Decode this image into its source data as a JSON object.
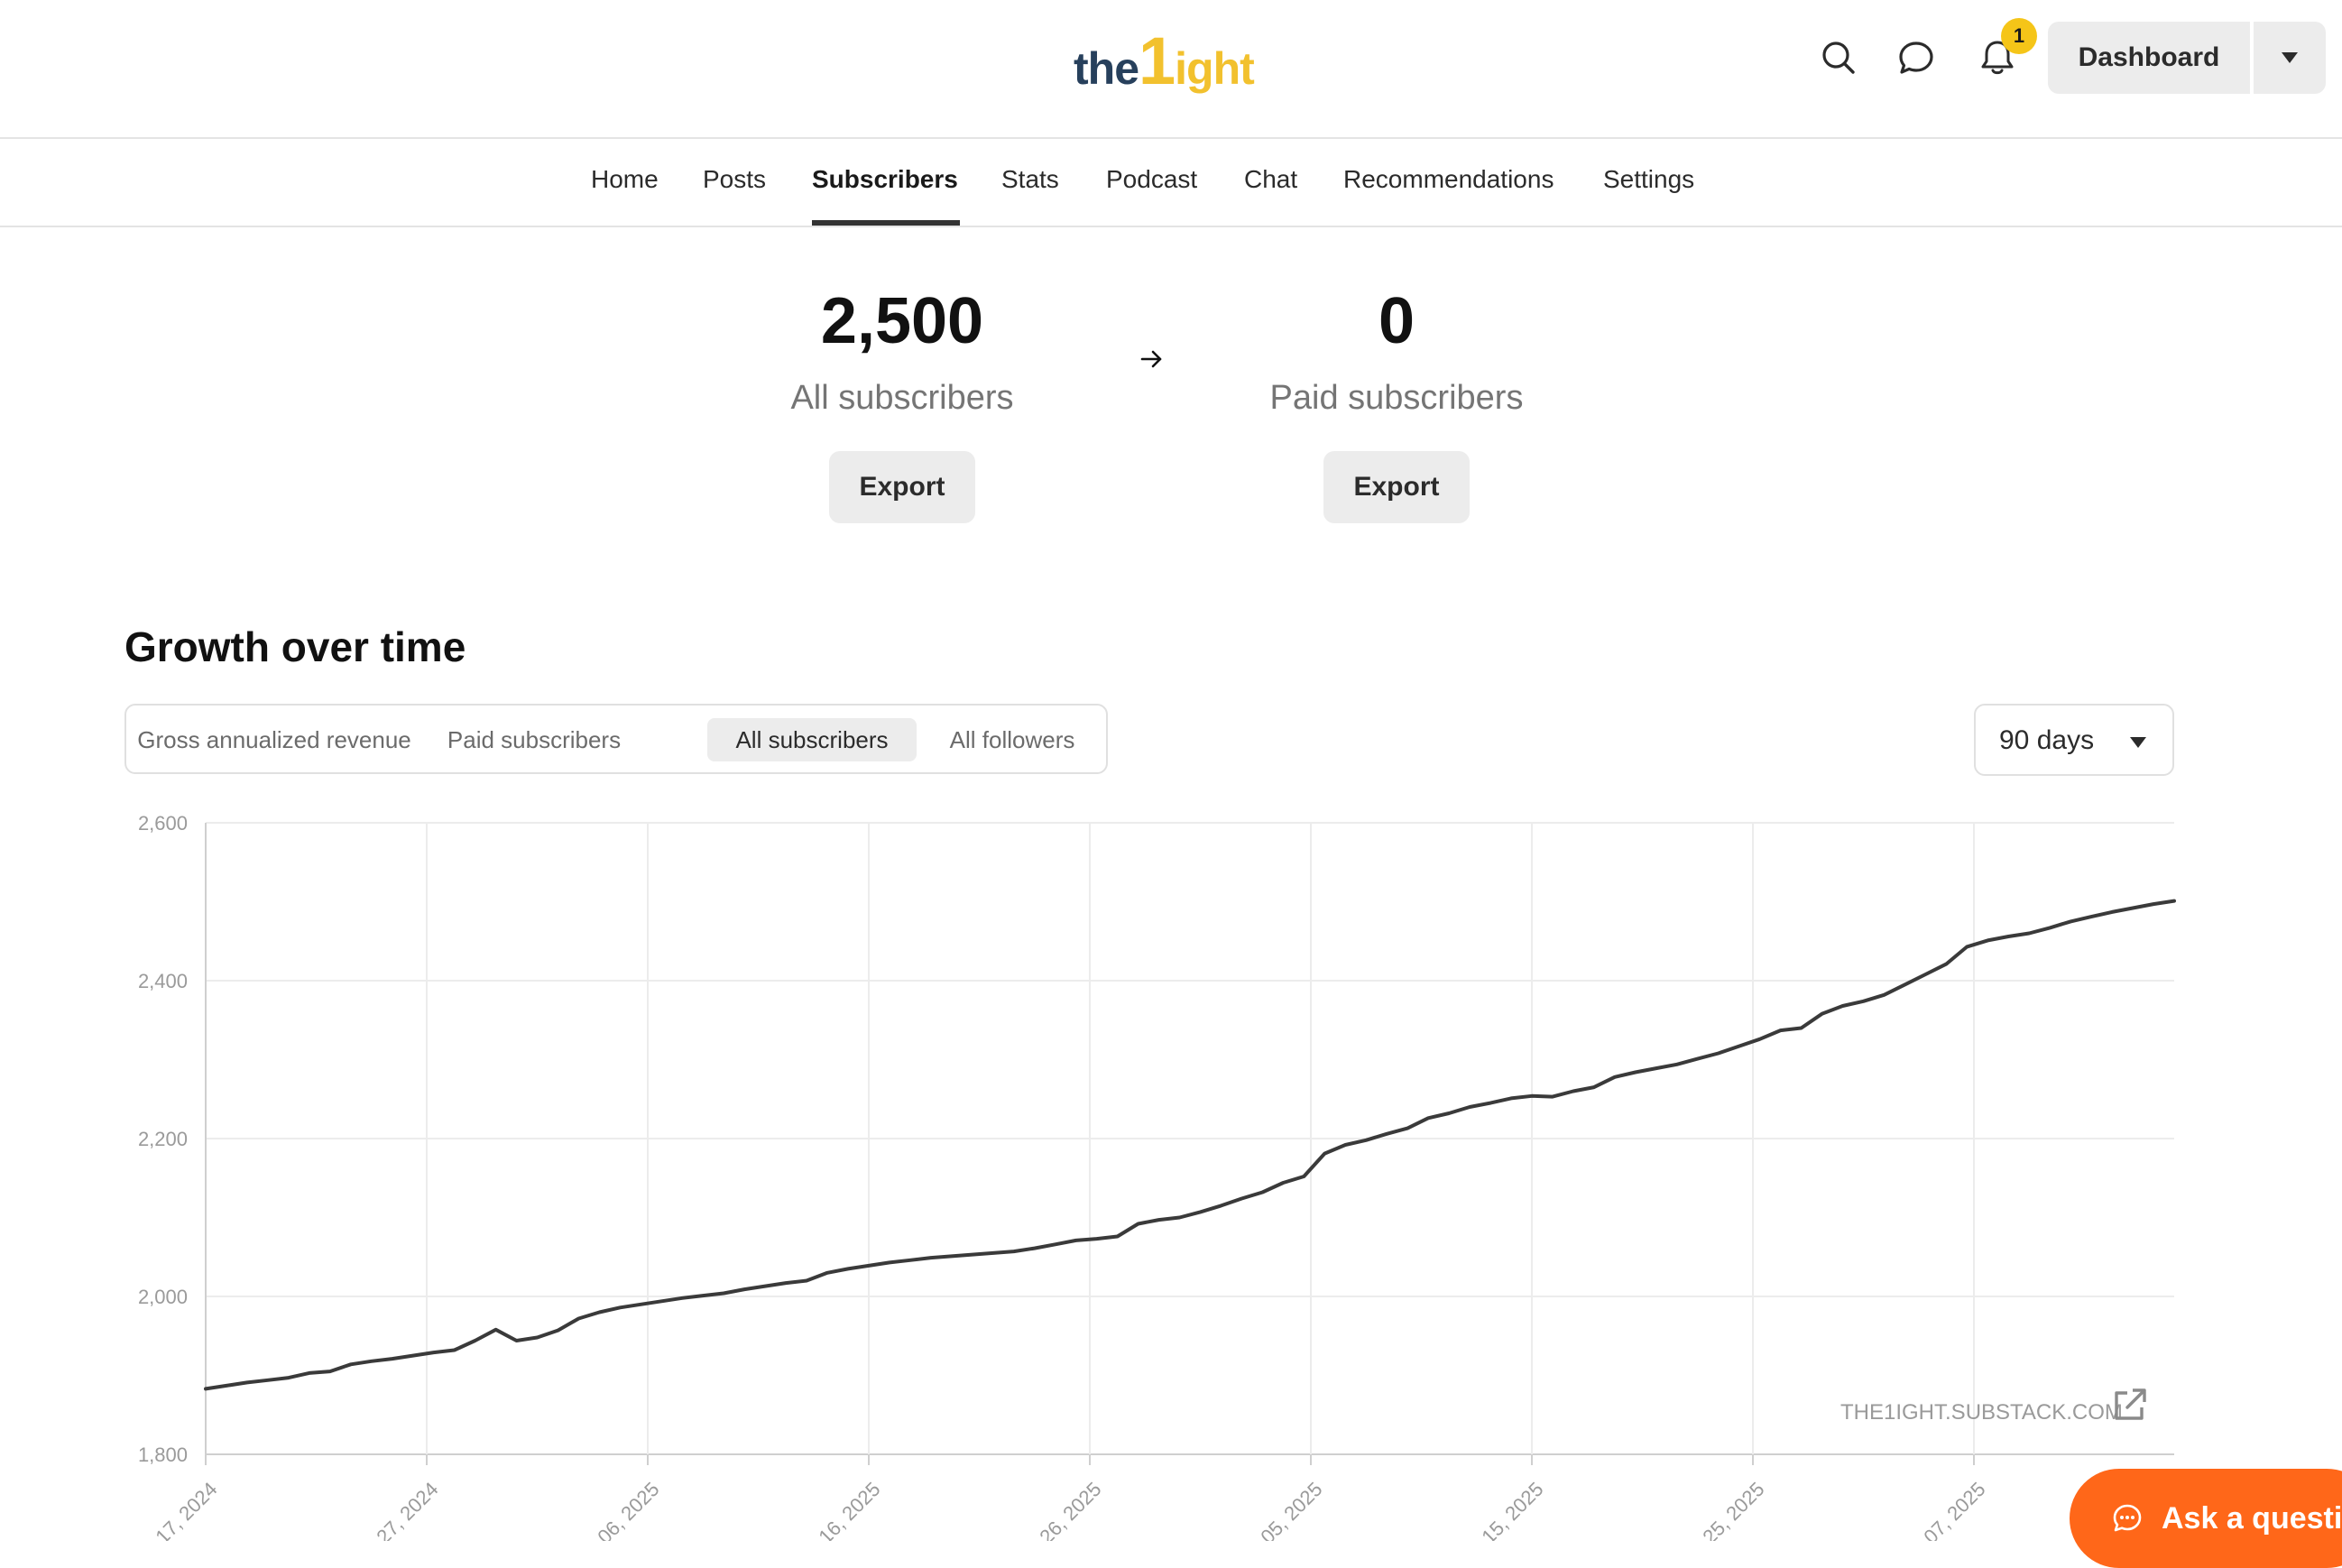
{
  "header": {
    "logo": {
      "part1": "the",
      "part2": "1",
      "part3": "ight"
    },
    "notifications_count": "1",
    "dashboard_label": "Dashboard"
  },
  "nav": {
    "items": [
      {
        "label": "Home"
      },
      {
        "label": "Posts"
      },
      {
        "label": "Subscribers",
        "active": true
      },
      {
        "label": "Stats"
      },
      {
        "label": "Podcast"
      },
      {
        "label": "Chat"
      },
      {
        "label": "Recommendations"
      },
      {
        "label": "Settings"
      }
    ]
  },
  "stats": {
    "all": {
      "value": "2,500",
      "label": "All subscribers",
      "export_label": "Export"
    },
    "paid": {
      "value": "0",
      "label": "Paid subscribers",
      "export_label": "Export"
    }
  },
  "growth": {
    "title": "Growth over time",
    "tabs": [
      {
        "label": "Gross annualized revenue"
      },
      {
        "label": "Paid subscribers"
      },
      {
        "label": "All subscribers",
        "active": true
      },
      {
        "label": "All followers"
      }
    ],
    "range": "90 days"
  },
  "watermark": "THE1IGHT.SUBSTACK.COM",
  "ask_button": "Ask a questio",
  "colors": {
    "accent": "#ff6719",
    "badge": "#f5c518",
    "line": "#3a3a3a",
    "logo_dark": "#27405c",
    "logo_gold": "#f2c12e"
  },
  "chart_data": {
    "type": "line",
    "ylim": [
      1800,
      2600
    ],
    "yticks": [
      "2,600",
      "2,400",
      "2,200",
      "2,000",
      "1,800"
    ],
    "x_tick_labels": [
      "17, 2024",
      "27, 2024",
      "06, 2025",
      "16, 2025",
      "26, 2025",
      "05, 2025",
      "15, 2025",
      "25, 2025",
      "07, 2025"
    ],
    "grid": true,
    "series": [
      {
        "values": [
          1883,
          1887,
          1891,
          1894,
          1897,
          1903,
          1905,
          1914,
          1918,
          1921,
          1925,
          1929,
          1932,
          1944,
          1958,
          1944,
          1948,
          1957,
          1972,
          1980,
          1986,
          1990,
          1994,
          1998,
          2001,
          2004,
          2009,
          2013,
          2017,
          2020,
          2030,
          2035,
          2039,
          2043,
          2046,
          2049,
          2051,
          2053,
          2055,
          2057,
          2061,
          2066,
          2071,
          2073,
          2076,
          2092,
          2097,
          2100,
          2107,
          2115,
          2124,
          2132,
          2144,
          2152,
          2181,
          2192,
          2198,
          2206,
          2213,
          2226,
          2232,
          2240,
          2245,
          2251,
          2254,
          2253,
          2260,
          2265,
          2278,
          2284,
          2289,
          2294,
          2301,
          2308,
          2317,
          2326,
          2337,
          2340,
          2358,
          2368,
          2374,
          2382,
          2395,
          2408,
          2421,
          2443,
          2451,
          2456,
          2460,
          2467,
          2475,
          2481,
          2487,
          2492,
          2497,
          2501
        ]
      }
    ]
  }
}
